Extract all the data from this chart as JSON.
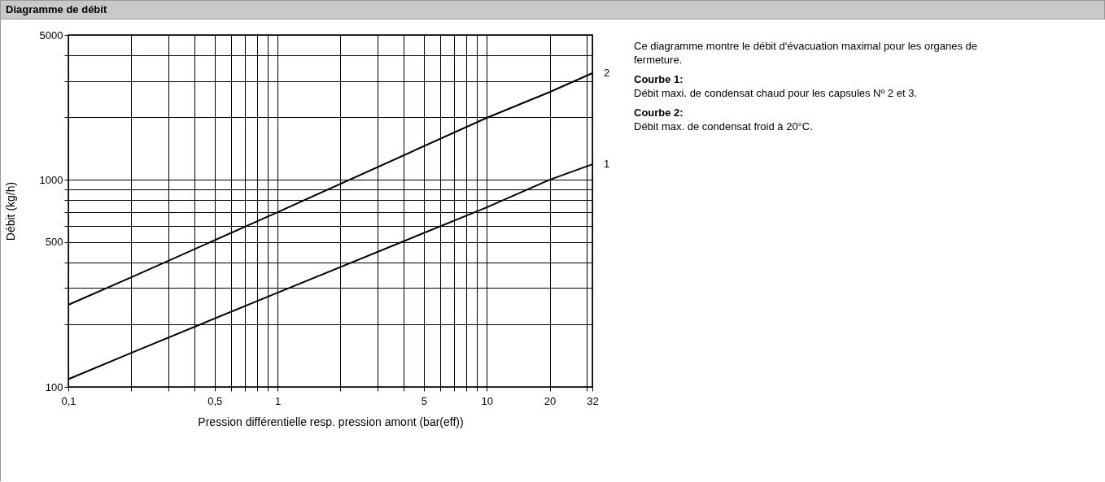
{
  "chart_data": {
    "type": "line",
    "title": "Diagramme de débit",
    "xlabel": "Pression différentielle resp. pression amont (bar(eff))",
    "ylabel": "Débit (kg/h)",
    "log": "xy",
    "grid": true,
    "legend": false,
    "line_style": "solid",
    "x": [
      0.1,
      0.2,
      1,
      10,
      20,
      32
    ],
    "series": [
      {
        "name": "2",
        "color": "#000000",
        "values": [
          249,
          338,
          697,
          1990,
          2650,
          3270
        ]
      },
      {
        "name": "1",
        "color": "#000000",
        "values": [
          109,
          146,
          285,
          736,
          1000,
          1188
        ]
      }
    ],
    "xlim": [
      0.1,
      32
    ],
    "ylim": [
      100,
      5000
    ],
    "xticks": [
      {
        "value": 0.1,
        "label": "0,1"
      },
      {
        "value": 0.2,
        "label": null
      },
      {
        "value": 0.3,
        "label": null
      },
      {
        "value": 0.4,
        "label": null
      },
      {
        "value": 0.5,
        "label": "0,5"
      },
      {
        "value": 0.6,
        "label": null
      },
      {
        "value": 0.7,
        "label": null
      },
      {
        "value": 0.8,
        "label": null
      },
      {
        "value": 0.9,
        "label": null
      },
      1,
      {
        "value": 2,
        "label": null
      },
      {
        "value": 3,
        "label": null
      },
      {
        "value": 4,
        "label": null
      },
      5,
      {
        "value": 6,
        "label": null
      },
      {
        "value": 7,
        "label": null
      },
      {
        "value": 8,
        "label": null
      },
      {
        "value": 9,
        "label": null
      },
      10,
      20,
      {
        "value": 30,
        "label": null
      },
      32
    ],
    "yticks": [
      100,
      {
        "value": 200,
        "label": null
      },
      {
        "value": 300,
        "label": null
      },
      {
        "value": 400,
        "label": null
      },
      500,
      {
        "value": 600,
        "label": null
      },
      {
        "value": 700,
        "label": null
      },
      {
        "value": 800,
        "label": null
      },
      {
        "value": 900,
        "label": null
      },
      1000,
      {
        "value": 2000,
        "label": null
      },
      {
        "value": 3000,
        "label": null
      },
      {
        "value": 4000,
        "label": null
      },
      5000
    ],
    "annotations": [
      "Ce diagramme montre le débit d‘évacuation maximal pour les organes de fermeture.",
      "Courbe 1:",
      "Débit maxi. de condensat chaud pour les capsules Nº 2 et 3.",
      "Courbe 2:",
      "Débit max. de condensat froid à 20°C."
    ]
  }
}
